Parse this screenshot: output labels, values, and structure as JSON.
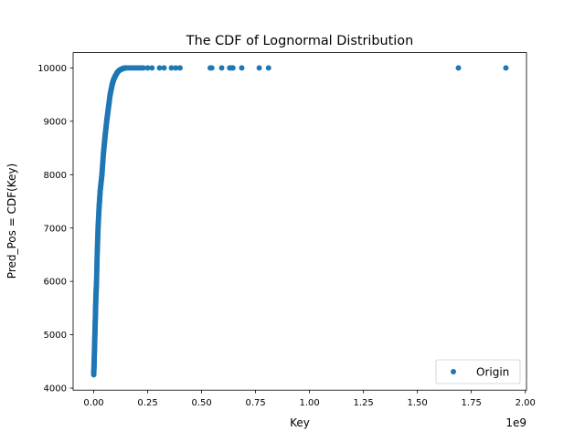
{
  "chart_data": {
    "type": "scatter",
    "title": "The CDF of Lognormal Distribution",
    "xlabel": "Key",
    "ylabel": "Pred_Pos = CDF(Key)",
    "x_offset_label": "1e9",
    "x_scale": 1000000000,
    "xlim": [
      -0.0955,
      2.0055
    ],
    "ylim": [
      3963,
      10287
    ],
    "xticks": [
      0,
      0.25,
      0.5,
      0.75,
      1.0,
      1.25,
      1.5,
      1.75,
      2.0
    ],
    "xtick_labels": [
      "0.00",
      "0.25",
      "0.50",
      "0.75",
      "1.00",
      "1.25",
      "1.50",
      "1.75",
      "2.00"
    ],
    "yticks": [
      4000,
      5000,
      6000,
      7000,
      8000,
      9000,
      10000
    ],
    "ytick_labels": [
      "4000",
      "5000",
      "6000",
      "7000",
      "8000",
      "9000",
      "10000"
    ],
    "grid": false,
    "legend": {
      "position": "bottom-right",
      "entries": [
        "Origin"
      ]
    },
    "series": [
      {
        "name": "Origin",
        "color": "#1f77b4",
        "marker": ".",
        "curve": {
          "x": [
            0.0,
            0.002,
            0.004,
            0.006,
            0.008,
            0.01,
            0.013,
            0.016,
            0.02,
            0.025,
            0.03,
            0.038,
            0.045,
            0.052,
            0.06,
            0.068,
            0.076,
            0.085,
            0.092,
            0.1,
            0.11,
            0.12,
            0.135,
            0.15
          ],
          "y": [
            4250,
            4500,
            4800,
            5100,
            5400,
            5700,
            6000,
            6500,
            7000,
            7400,
            7700,
            8000,
            8400,
            8700,
            9000,
            9250,
            9500,
            9680,
            9780,
            9850,
            9920,
            9960,
            9990,
            10000
          ]
        },
        "outliers": {
          "x": [
            0.16,
            0.17,
            0.18,
            0.19,
            0.2,
            0.21,
            0.22,
            0.23,
            0.25,
            0.27,
            0.305,
            0.326,
            0.36,
            0.38,
            0.4,
            0.54,
            0.547,
            0.593,
            0.63,
            0.636,
            0.645,
            0.686,
            0.767,
            0.81,
            1.69,
            1.91
          ],
          "y": [
            10000,
            10000,
            10000,
            10000,
            10000,
            10000,
            10000,
            10000,
            10000,
            10000,
            10000,
            10000,
            10000,
            10000,
            10000,
            10000,
            10000,
            10000,
            10000,
            10000,
            10000,
            10000,
            10000,
            10000,
            10000,
            10000
          ]
        }
      }
    ]
  }
}
